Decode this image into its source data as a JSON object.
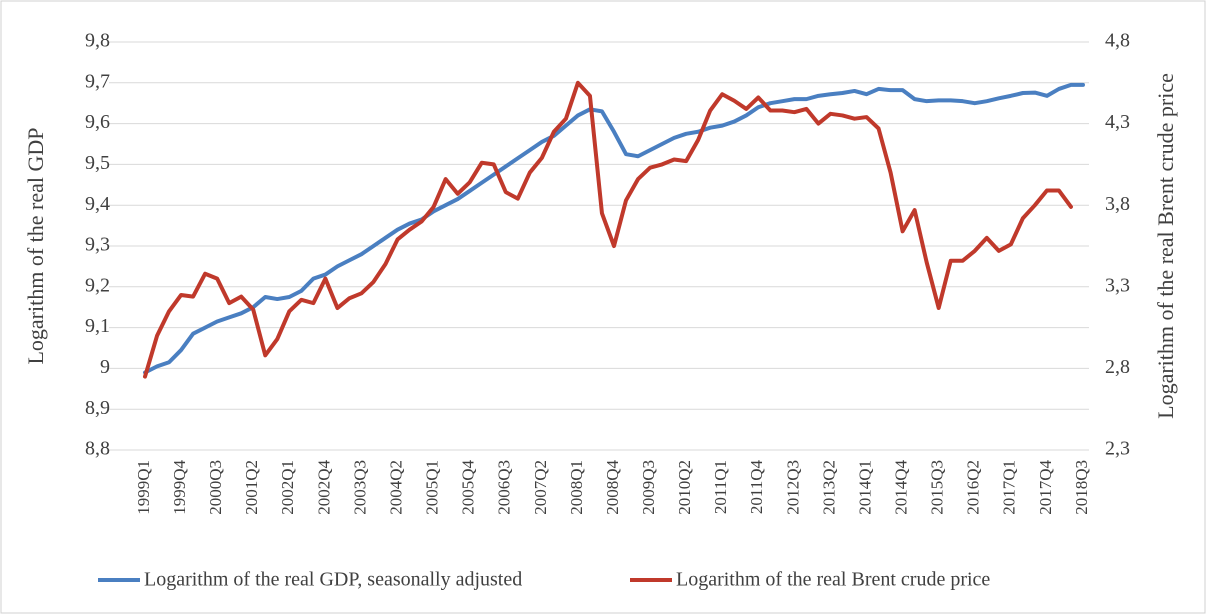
{
  "chart_data": {
    "type": "line",
    "y_label": "Logarithm of the real GDP",
    "y2_label": "Logarithm of the real Brent crude price",
    "categories": [
      "1999Q1",
      null,
      null,
      "1999Q4",
      null,
      null,
      "2000Q3",
      null,
      null,
      "2001Q2",
      null,
      null,
      "2002Q1",
      null,
      null,
      "2002Q4",
      null,
      null,
      "2003Q3",
      null,
      null,
      "2004Q2",
      null,
      null,
      "2005Q1",
      null,
      null,
      "2005Q4",
      null,
      null,
      "2006Q3",
      null,
      null,
      "2007Q2",
      null,
      null,
      "2008Q1",
      null,
      null,
      "2008Q4",
      null,
      null,
      "2009Q3",
      null,
      null,
      "2010Q2",
      null,
      null,
      "2011Q1",
      null,
      null,
      "2011Q4",
      null,
      null,
      "2012Q3",
      null,
      null,
      "2013Q2",
      null,
      null,
      "2014Q1",
      null,
      null,
      "2014Q4",
      null,
      null,
      "2015Q3",
      null,
      null,
      "2016Q2",
      null,
      null,
      "2017Q1",
      null,
      null,
      "2017Q4",
      null,
      null,
      "2018Q3"
    ],
    "series": [
      {
        "name": "Logarithm of the real GDP, seasonally adjusted",
        "color": "#4a7fc1",
        "axis": "y",
        "values": [
          8.99,
          9.005,
          9.015,
          9.045,
          9.085,
          9.1,
          9.115,
          9.125,
          9.135,
          9.15,
          9.175,
          9.17,
          9.175,
          9.19,
          9.22,
          9.23,
          9.25,
          9.265,
          9.28,
          9.3,
          9.32,
          9.34,
          9.355,
          9.365,
          9.385,
          9.4,
          9.415,
          9.435,
          9.455,
          9.475,
          9.495,
          9.515,
          9.535,
          9.555,
          9.57,
          9.595,
          9.62,
          9.635,
          9.63,
          9.58,
          9.525,
          9.52,
          9.535,
          9.55,
          9.565,
          9.575,
          9.58,
          9.59,
          9.595,
          9.605,
          9.62,
          9.64,
          9.65,
          9.655,
          9.66,
          9.66,
          9.668,
          9.672,
          9.675,
          9.68,
          9.672,
          9.685,
          9.682,
          9.682,
          9.66,
          9.655,
          9.657,
          9.657,
          9.655,
          9.65,
          9.655,
          9.662,
          9.668,
          9.675,
          9.676,
          9.668,
          9.685,
          9.695,
          9.695
        ]
      },
      {
        "name": "Logarithm of the real Brent crude price",
        "color": "#c0392b",
        "axis": "y2",
        "values": [
          2.75,
          3.0,
          3.15,
          3.25,
          3.24,
          3.38,
          3.35,
          3.2,
          3.24,
          3.16,
          2.88,
          2.98,
          3.15,
          3.22,
          3.2,
          3.35,
          3.17,
          3.23,
          3.26,
          3.33,
          3.44,
          3.59,
          3.65,
          3.7,
          3.79,
          3.96,
          3.87,
          3.94,
          4.06,
          4.05,
          3.88,
          3.84,
          4.0,
          4.09,
          4.25,
          4.33,
          4.55,
          4.47,
          3.75,
          3.55,
          3.83,
          3.96,
          4.03,
          4.05,
          4.08,
          4.07,
          4.2,
          4.38,
          4.48,
          4.44,
          4.39,
          4.46,
          4.38,
          4.38,
          4.37,
          4.39,
          4.3,
          4.36,
          4.35,
          4.33,
          4.34,
          4.27,
          4.0,
          3.64,
          3.77,
          3.45,
          3.17,
          3.46,
          3.46,
          3.52,
          3.6,
          3.52,
          3.56,
          3.72,
          3.8,
          3.89,
          3.89,
          3.79,
          null
        ]
      }
    ],
    "ylim": [
      8.8,
      9.8
    ],
    "yticks": [
      {
        "value": 8.8,
        "label": "8,8"
      },
      {
        "value": 8.9,
        "label": "8,9"
      },
      9,
      {
        "value": 9.1,
        "label": "9,1"
      },
      {
        "value": 9.2,
        "label": "9,2"
      },
      {
        "value": 9.3,
        "label": "9,3"
      },
      {
        "value": 9.4,
        "label": "9,4"
      },
      {
        "value": 9.5,
        "label": "9,5"
      },
      {
        "value": 9.6,
        "label": "9,6"
      },
      {
        "value": 9.7,
        "label": "9,7"
      },
      {
        "value": 9.8,
        "label": "9,8"
      }
    ],
    "y2lim": [
      2.3,
      4.8
    ],
    "y2ticks": [
      {
        "value": 2.3,
        "label": "2,3"
      },
      {
        "value": 2.8,
        "label": "2,8"
      },
      {
        "value": 3.3,
        "label": "3,3"
      },
      {
        "value": 3.8,
        "label": "3,8"
      },
      {
        "value": 4.3,
        "label": "4,3"
      },
      {
        "value": 4.8,
        "label": "4,8"
      }
    ],
    "grid": true,
    "legend": "bottom"
  }
}
